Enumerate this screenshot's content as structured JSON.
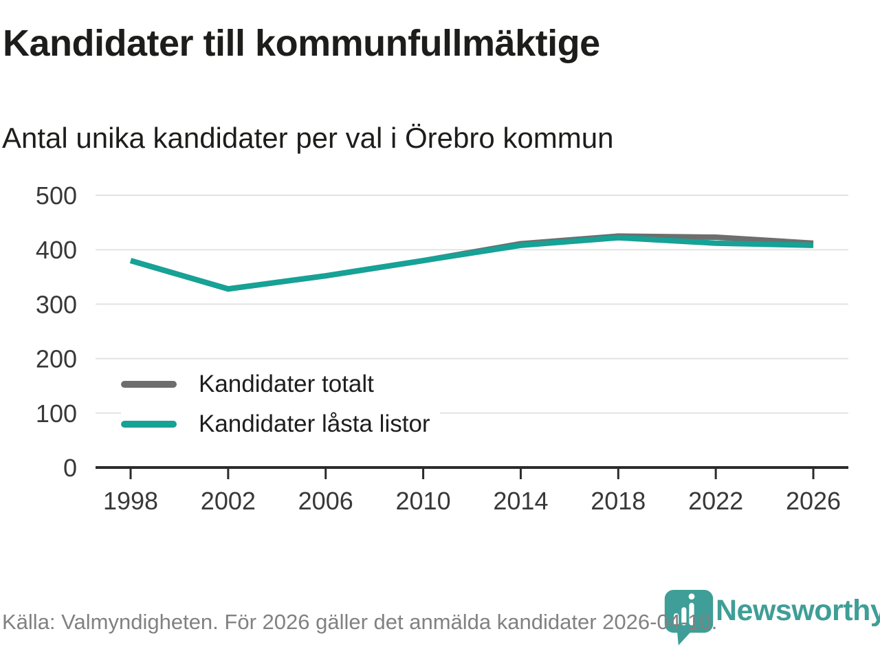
{
  "header": {
    "title": "Kandidater till kommunfullmäktige",
    "subtitle": "Antal unika kandidater per val i Örebro kommun"
  },
  "chart_data": {
    "type": "line",
    "title": "Kandidater till kommunfullmäktige",
    "subtitle": "Antal unika kandidater per val i Örebro kommun",
    "x": [
      1998,
      2002,
      2006,
      2010,
      2014,
      2018,
      2022,
      2026
    ],
    "series": [
      {
        "name": "Kandidater totalt",
        "color": "#6e6e6e",
        "values": [
          380,
          328,
          352,
          380,
          411,
          425,
          423,
          412
        ]
      },
      {
        "name": "Kandidater låsta listor",
        "color": "#16a296",
        "values": [
          380,
          328,
          352,
          380,
          408,
          422,
          412,
          408
        ]
      }
    ],
    "xlabel": "",
    "ylabel": "",
    "ylim": [
      0,
      500
    ],
    "yticks": [
      0,
      100,
      200,
      300,
      400,
      500
    ],
    "grid": true,
    "legend_position": "inside-left"
  },
  "footer": {
    "source": "Källa: Valmyndigheten. För 2026 gäller det anmälda kandidater 2026-04-10.",
    "brand": "Newsworthy",
    "brand_color": "#3f9e97",
    "logo_icon": "newsworthy-pin-chart-icon"
  }
}
